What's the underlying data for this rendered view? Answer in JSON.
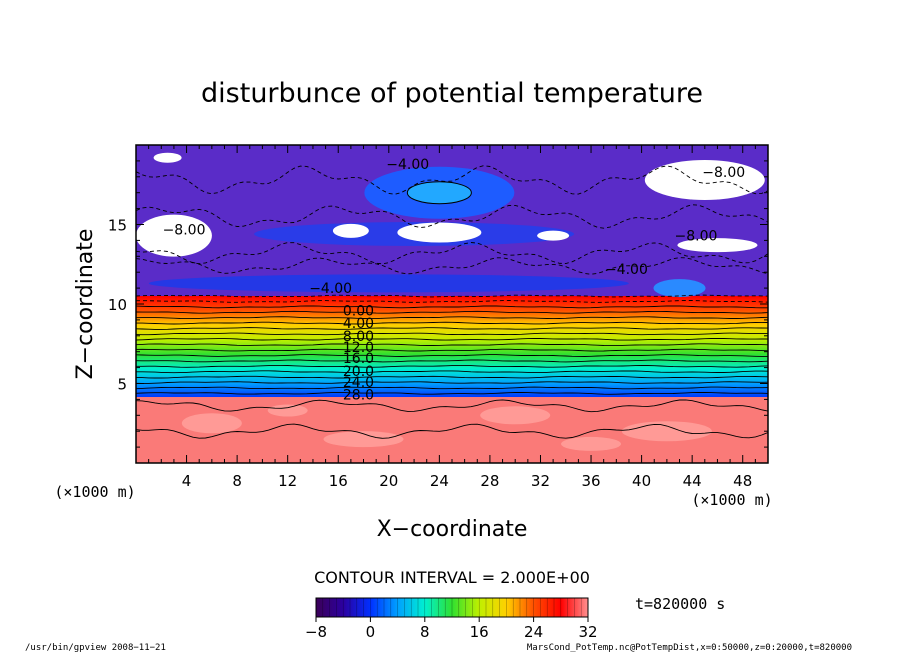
{
  "chart_data": {
    "type": "contour",
    "title": "disturbunce of potential temperature",
    "xlabel": "X−coordinate",
    "ylabel": "Z−coordinate",
    "x_unit": "(×1000 m)",
    "y_unit": "(×1000 m)",
    "xlim": [
      0,
      50
    ],
    "ylim": [
      0,
      20
    ],
    "x_ticks": [
      4,
      8,
      12,
      16,
      20,
      24,
      28,
      32,
      36,
      40,
      44,
      48
    ],
    "y_ticks": [
      5,
      10,
      15
    ],
    "contour_interval_label": "CONTOUR INTERVAL = 2.000E+00",
    "time_label": "t=820000 s",
    "contour_labels": [
      "0.00",
      "4.00",
      "8.00",
      "12.0",
      "16.0",
      "20.0",
      "24.0",
      "28.0"
    ],
    "upper_labels": [
      "−4.00",
      "−8.00",
      "−8.00",
      "−8.00",
      "−4.00",
      "−4.00"
    ],
    "colorbar": {
      "min": -8,
      "max": 32,
      "ticks": [
        "−8",
        "0",
        "8",
        "16",
        "24",
        "32"
      ],
      "colors": [
        "#3b0058",
        "#2b00a0",
        "#0030ff",
        "#00a0ff",
        "#00f0d0",
        "#30e030",
        "#c0f000",
        "#ffd000",
        "#ff5000",
        "#ff0000",
        "#ff9090"
      ]
    },
    "grid": false
  },
  "footer": {
    "left": "/usr/bin/gpview   2008−11−21",
    "right": "MarsCond_PotTemp.nc@PotTempDist,x=0:50000,z=0:20000,t=820000"
  }
}
